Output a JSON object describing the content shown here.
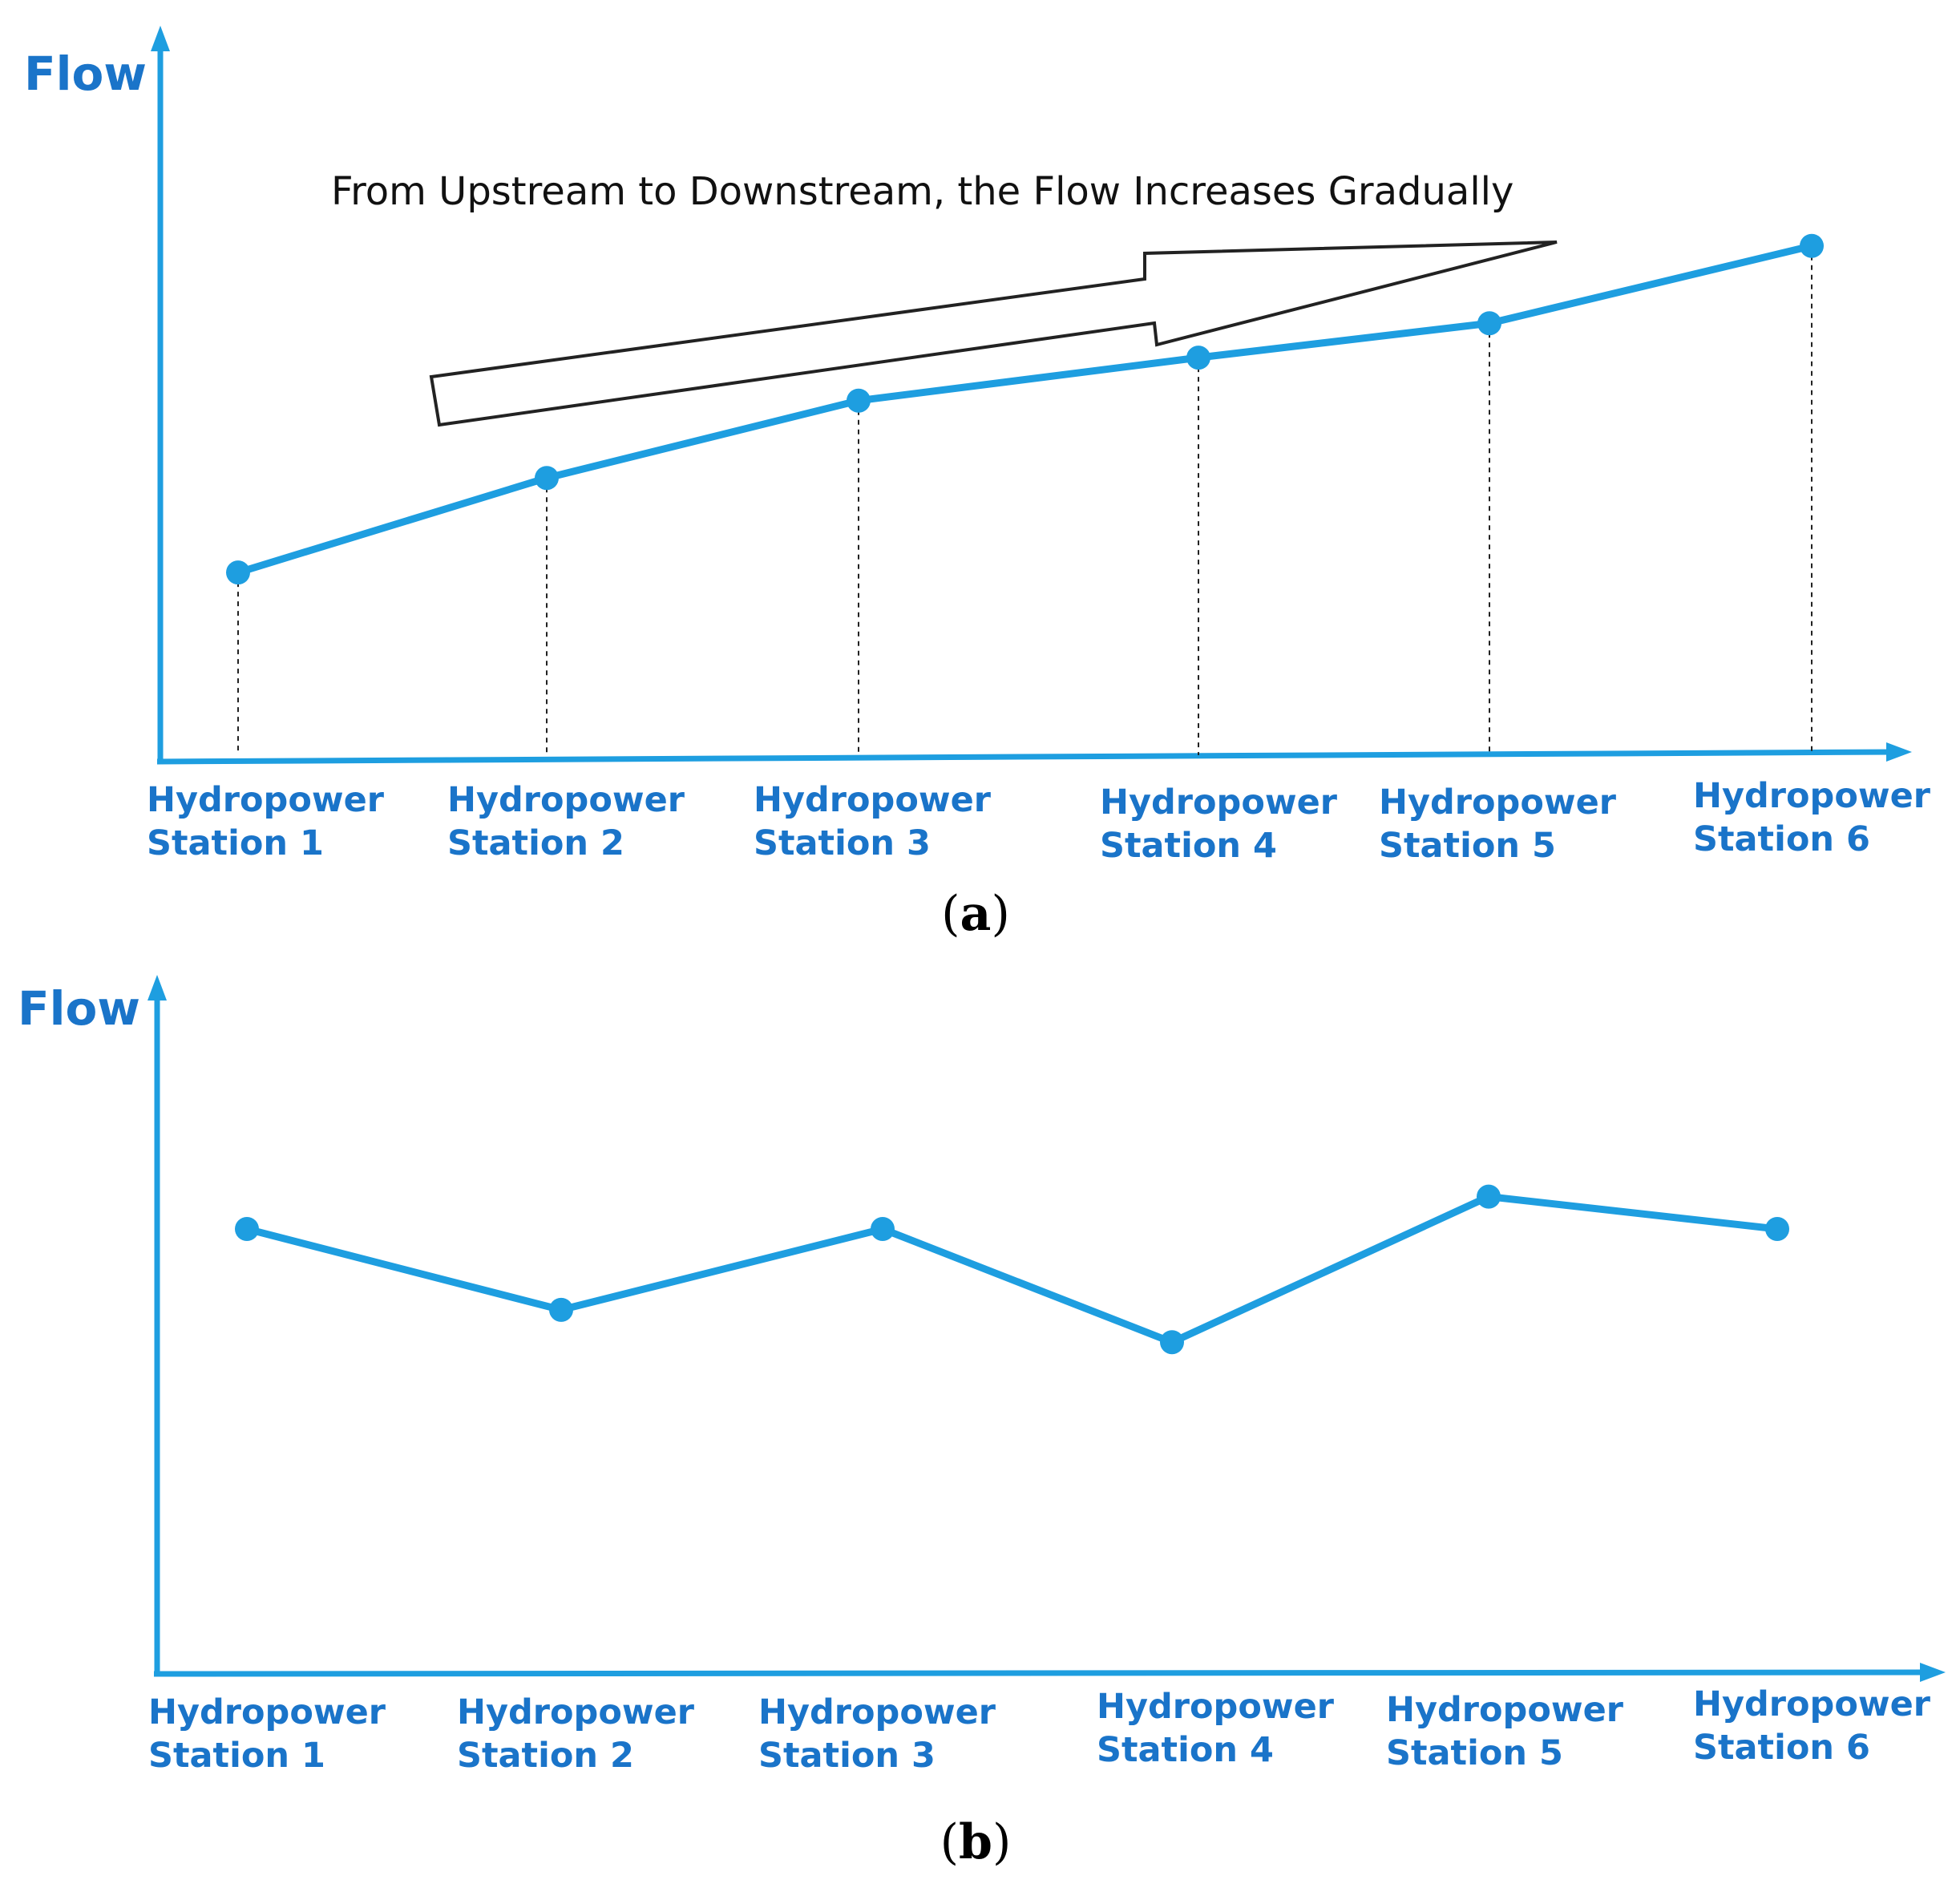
{
  "colors": {
    "series": "#1e9ee0",
    "label": "#1a74c9",
    "text": "#111111"
  },
  "chart_data": [
    {
      "type": "line",
      "panel_label": "a",
      "ylabel": "Flow",
      "annotation": "From Upstream to Downstream, the Flow Increases Gradually",
      "categories": [
        [
          "Hydropower",
          "Station 1"
        ],
        [
          "Hydropower",
          "Station 2"
        ],
        [
          "Hydropower",
          "Station 3"
        ],
        [
          "Hydropower",
          "Station 4"
        ],
        [
          "Hydropower",
          "Station 5"
        ],
        [
          "Hydropower",
          "Station 6"
        ]
      ],
      "values": [
        2.2,
        3.3,
        4.2,
        4.7,
        5.1,
        6.0
      ],
      "ylim": [
        0,
        8.6
      ],
      "dropline": true,
      "grid": false,
      "arrow": "increasing trend"
    },
    {
      "type": "line",
      "panel_label": "b",
      "ylabel": "Flow",
      "categories": [
        [
          "Hydropower",
          "Station 1"
        ],
        [
          "Hydropower",
          "Station 2"
        ],
        [
          "Hydropower",
          "Station 3"
        ],
        [
          "Hydropower",
          "Station 4"
        ],
        [
          "Hydropower",
          "Station 5"
        ],
        [
          "Hydropower",
          "Station 6"
        ]
      ],
      "values": [
        5.5,
        4.5,
        5.5,
        4.1,
        5.9,
        5.5
      ],
      "ylim": [
        0,
        8.8
      ],
      "dropline": false,
      "grid": false
    }
  ]
}
